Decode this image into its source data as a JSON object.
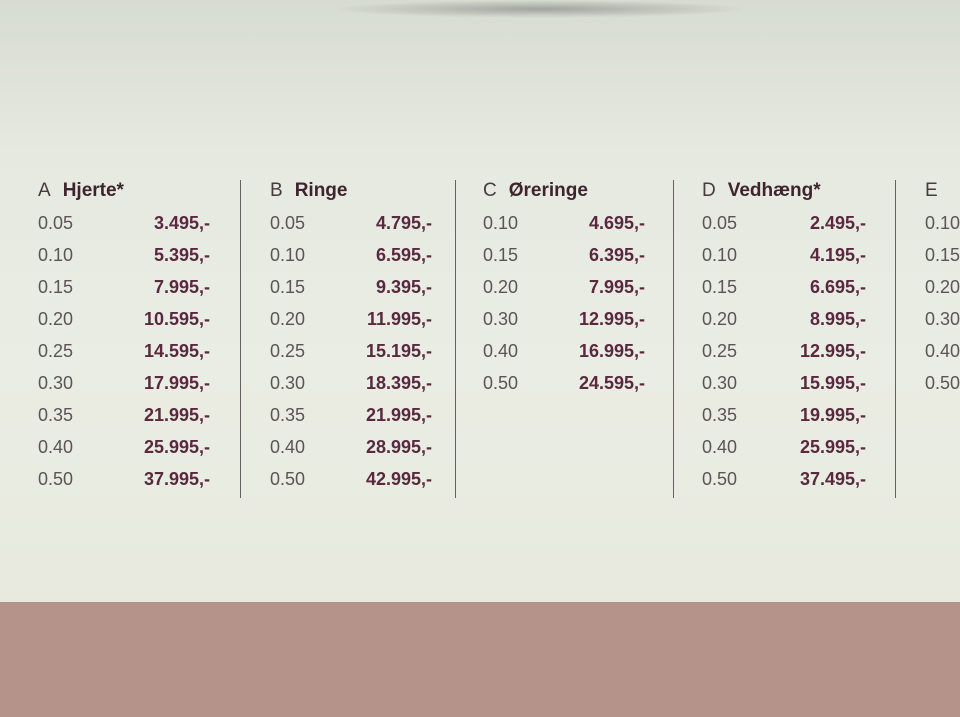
{
  "columns": [
    {
      "letter": "A",
      "name": "Hjerte*",
      "rows": [
        {
          "size": "0.05",
          "price": "3.495,-"
        },
        {
          "size": "0.10",
          "price": "5.395,-"
        },
        {
          "size": "0.15",
          "price": "7.995,-"
        },
        {
          "size": "0.20",
          "price": "10.595,-"
        },
        {
          "size": "0.25",
          "price": "14.595,-"
        },
        {
          "size": "0.30",
          "price": "17.995,-"
        },
        {
          "size": "0.35",
          "price": "21.995,-"
        },
        {
          "size": "0.40",
          "price": "25.995,-"
        },
        {
          "size": "0.50",
          "price": "37.995,-"
        }
      ]
    },
    {
      "letter": "B",
      "name": "Ringe",
      "rows": [
        {
          "size": "0.05",
          "price": "4.795,-"
        },
        {
          "size": "0.10",
          "price": "6.595,-"
        },
        {
          "size": "0.15",
          "price": "9.395,-"
        },
        {
          "size": "0.20",
          "price": "11.995,-"
        },
        {
          "size": "0.25",
          "price": "15.195,-"
        },
        {
          "size": "0.30",
          "price": "18.395,-"
        },
        {
          "size": "0.35",
          "price": "21.995,-"
        },
        {
          "size": "0.40",
          "price": "28.995,-"
        },
        {
          "size": "0.50",
          "price": "42.995,-"
        }
      ]
    },
    {
      "letter": "C",
      "name": "Øreringe",
      "rows": [
        {
          "size": "0.10",
          "price": "4.695,-"
        },
        {
          "size": "0.15",
          "price": "6.395,-"
        },
        {
          "size": "0.20",
          "price": "7.995,-"
        },
        {
          "size": "0.30",
          "price": "12.995,-"
        },
        {
          "size": "0.40",
          "price": "16.995,-"
        },
        {
          "size": "0.50",
          "price": "24.595,-"
        }
      ]
    },
    {
      "letter": "D",
      "name": "Vedhæng*",
      "rows": [
        {
          "size": "0.05",
          "price": "2.495,-"
        },
        {
          "size": "0.10",
          "price": "4.195,-"
        },
        {
          "size": "0.15",
          "price": "6.695,-"
        },
        {
          "size": "0.20",
          "price": "8.995,-"
        },
        {
          "size": "0.25",
          "price": "12.995,-"
        },
        {
          "size": "0.30",
          "price": "15.995,-"
        },
        {
          "size": "0.35",
          "price": "19.995,-"
        },
        {
          "size": "0.40",
          "price": "25.995,-"
        },
        {
          "size": "0.50",
          "price": "37.495,-"
        }
      ]
    },
    {
      "letter": "E",
      "name": "",
      "rows": [
        {
          "size": "0.10",
          "price": ""
        },
        {
          "size": "0.15",
          "price": ""
        },
        {
          "size": "0.20",
          "price": ""
        },
        {
          "size": "0.30",
          "price": ""
        },
        {
          "size": "0.40",
          "price": ""
        },
        {
          "size": "0.50",
          "price": ""
        }
      ]
    }
  ]
}
